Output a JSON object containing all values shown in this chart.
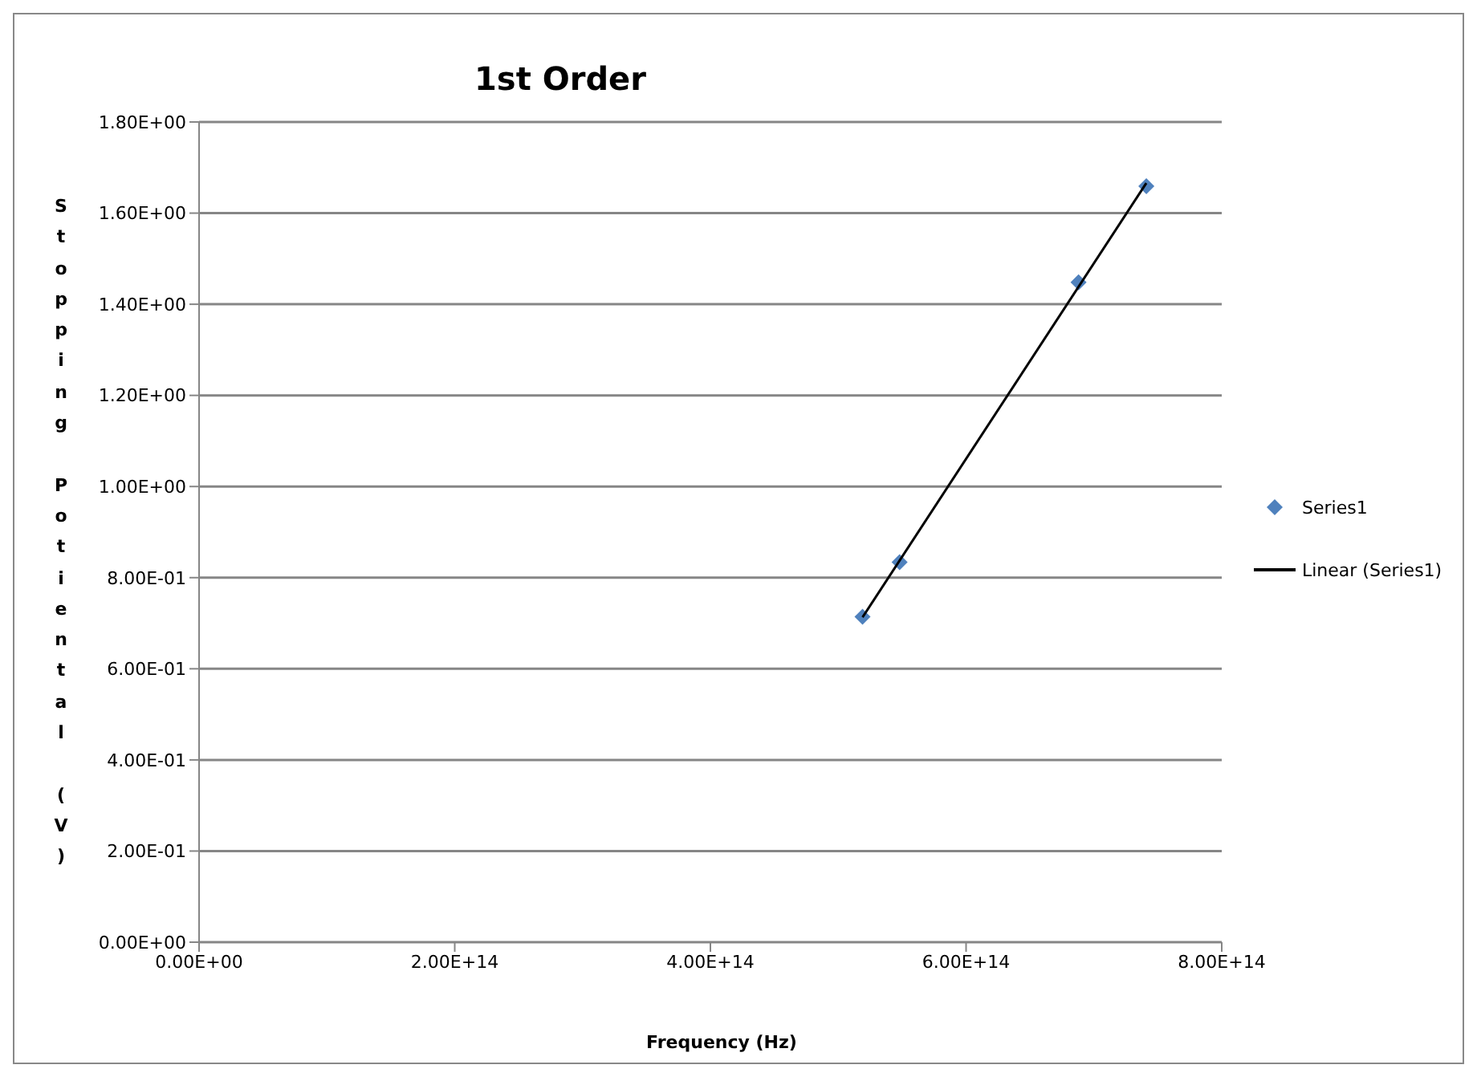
{
  "chart_data": {
    "type": "scatter",
    "title": "1st Order",
    "xlabel": "Frequency (Hz)",
    "ylabel": "Stopping Potiental (V)",
    "series": [
      {
        "name": "Series1",
        "color": "#4f81bd",
        "marker": "diamond",
        "x": [
          519000000000000.0,
          548000000000000.0,
          688000000000000.0,
          741000000000000.0
        ],
        "values": [
          0.714,
          0.834,
          1.448,
          1.659
        ]
      },
      {
        "name": "Linear (Series1)",
        "type": "line",
        "color": "#000000",
        "marker": "none",
        "x": [
          519000000000000.0,
          741000000000000.0
        ],
        "values": [
          0.713,
          1.666
        ]
      }
    ],
    "xlim": [
      0,
      800000000000000.0
    ],
    "xticks": [
      {
        "value": 0,
        "label": "0.00E+00"
      },
      {
        "value": 200000000000000.0,
        "label": "2.00E+14"
      },
      {
        "value": 400000000000000.0,
        "label": "4.00E+14"
      },
      {
        "value": 600000000000000.0,
        "label": "6.00E+14"
      },
      {
        "value": 800000000000000.0,
        "label": "8.00E+14"
      }
    ],
    "ylim": [
      0,
      1.8
    ],
    "yticks": [
      {
        "value": 0,
        "label": "0.00E+00"
      },
      {
        "value": 0.2,
        "label": "2.00E-01"
      },
      {
        "value": 0.4,
        "label": "4.00E-01"
      },
      {
        "value": 0.6,
        "label": "6.00E-01"
      },
      {
        "value": 0.8,
        "label": "8.00E-01"
      },
      {
        "value": 1,
        "label": "1.00E+00"
      },
      {
        "value": 1.2,
        "label": "1.20E+00"
      },
      {
        "value": 1.4,
        "label": "1.40E+00"
      },
      {
        "value": 1.6,
        "label": "1.60E+00"
      },
      {
        "value": 1.8,
        "label": "1.80E+00"
      }
    ],
    "grid": "y",
    "legend": "right"
  }
}
